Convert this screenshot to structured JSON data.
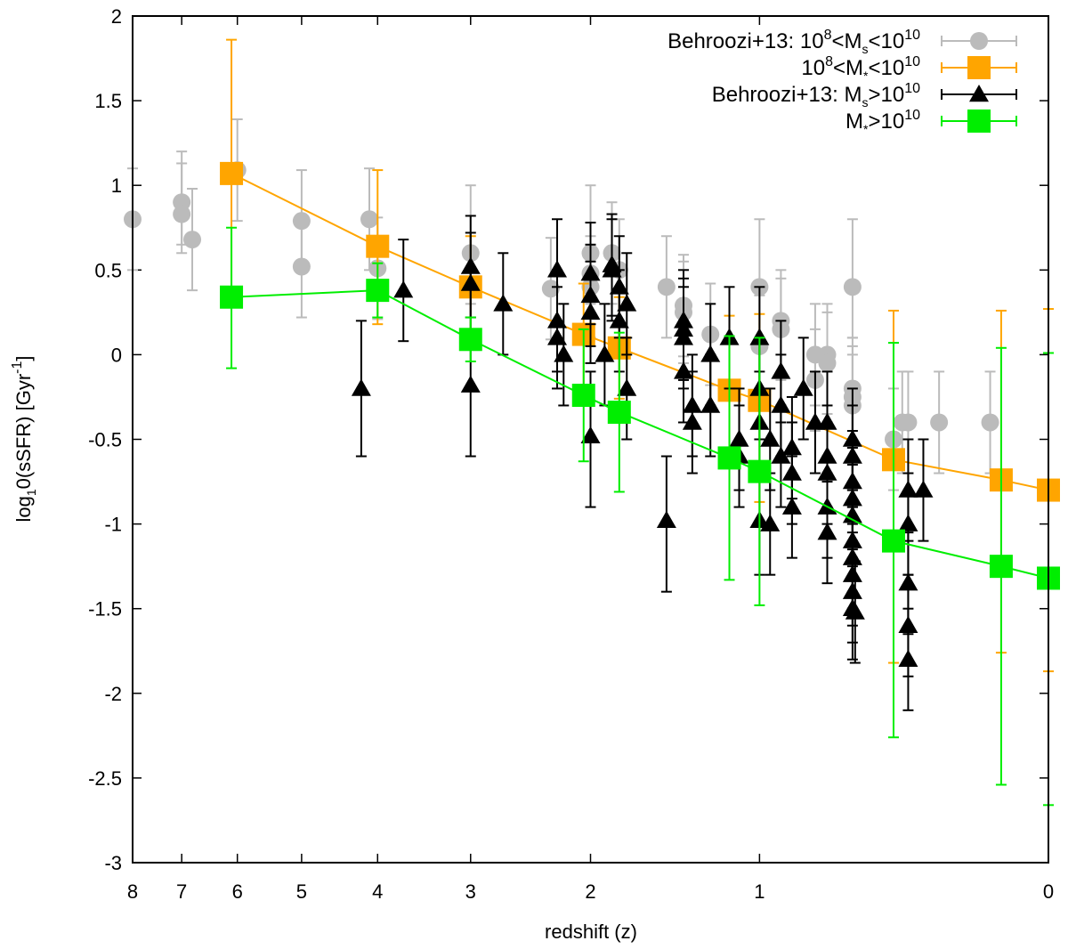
{
  "chart_data": {
    "type": "scatter",
    "title": "",
    "xlabel": "redshift (z)",
    "ylabel": {
      "pre": "log",
      "sub": "1",
      "mid": "0(sSFR) [Gyr",
      "sup": "-1",
      "post": "]"
    },
    "x_axis": {
      "scale": "log(1+z), reversed",
      "range": [
        8,
        0
      ]
    },
    "ylim": [
      -3,
      2
    ],
    "xticks": [
      {
        "z": 8,
        "label": "8"
      },
      {
        "z": 7,
        "label": "7"
      },
      {
        "z": 6,
        "label": "6"
      },
      {
        "z": 5,
        "label": "5"
      },
      {
        "z": 4,
        "label": "4"
      },
      {
        "z": 3,
        "label": "3"
      },
      {
        "z": 2,
        "label": "2"
      },
      {
        "z": 1,
        "label": "1"
      },
      {
        "z": 0,
        "label": "0"
      }
    ],
    "yticks": [
      {
        "v": 2,
        "label": "2"
      },
      {
        "v": 1.5,
        "label": "1.5"
      },
      {
        "v": 1,
        "label": "1"
      },
      {
        "v": 0.5,
        "label": "0.5"
      },
      {
        "v": 0,
        "label": "0"
      },
      {
        "v": -0.5,
        "label": "-0.5"
      },
      {
        "v": -1,
        "label": "-1"
      },
      {
        "v": -1.5,
        "label": "-1.5"
      },
      {
        "v": -2,
        "label": "-2"
      },
      {
        "v": -2.5,
        "label": "-2.5"
      },
      {
        "v": -3,
        "label": "-3"
      }
    ],
    "legend_position": "top-right",
    "series": [
      {
        "id": "behroozi-low",
        "legend": {
          "pre": "Behroozi+13: 10",
          "sup1": "8",
          "mid": "<M",
          "sub": "s",
          "mid2": "<10",
          "sup2": "10",
          "post": ""
        },
        "marker": "circle",
        "color": "#bbbbbb",
        "line": false,
        "points": [
          {
            "z": 8.0,
            "y": 0.8,
            "lo": 0.5,
            "hi": 1.1
          },
          {
            "z": 7.0,
            "y": 0.9,
            "lo": 0.6,
            "hi": 1.2
          },
          {
            "z": 7.0,
            "y": 0.83,
            "lo": 0.65,
            "hi": 1.13
          },
          {
            "z": 6.8,
            "y": 0.68,
            "lo": 0.38,
            "hi": 0.98
          },
          {
            "z": 6.0,
            "y": 1.09,
            "lo": 0.79,
            "hi": 1.39
          },
          {
            "z": 5.0,
            "y": 0.79,
            "lo": 0.49,
            "hi": 1.09
          },
          {
            "z": 5.0,
            "y": 0.52,
            "lo": 0.22,
            "hi": 0.82
          },
          {
            "z": 4.1,
            "y": 0.8,
            "lo": 0.5,
            "hi": 1.1
          },
          {
            "z": 4.0,
            "y": 0.51,
            "lo": 0.21,
            "hi": 0.81
          },
          {
            "z": 3.0,
            "y": 0.6,
            "lo": 0.3,
            "hi": 1.0
          },
          {
            "z": 2.3,
            "y": 0.39,
            "lo": 0.09,
            "hi": 0.69
          },
          {
            "z": 2.0,
            "y": 0.6,
            "lo": 0.3,
            "hi": 1.0
          },
          {
            "z": 2.0,
            "y": 0.48,
            "lo": 0.18,
            "hi": 0.78
          },
          {
            "z": 2.0,
            "y": 0.4,
            "lo": 0.1,
            "hi": 0.7
          },
          {
            "z": 1.85,
            "y": 0.6,
            "lo": 0.3,
            "hi": 0.9
          },
          {
            "z": 1.8,
            "y": 0.5,
            "lo": 0.2,
            "hi": 0.8
          },
          {
            "z": 1.5,
            "y": 0.4,
            "lo": 0.1,
            "hi": 0.7
          },
          {
            "z": 1.4,
            "y": 0.29,
            "lo": -0.01,
            "hi": 0.59
          },
          {
            "z": 1.4,
            "y": 0.25,
            "lo": -0.05,
            "hi": 0.55
          },
          {
            "z": 1.25,
            "y": 0.12,
            "lo": -0.18,
            "hi": 0.42
          },
          {
            "z": 1.0,
            "y": 0.4,
            "lo": 0.1,
            "hi": 0.8
          },
          {
            "z": 1.0,
            "y": 0.05,
            "lo": -0.25,
            "hi": 0.35
          },
          {
            "z": 0.9,
            "y": 0.2,
            "lo": -0.1,
            "hi": 0.5
          },
          {
            "z": 0.9,
            "y": 0.15,
            "lo": -0.15,
            "hi": 0.45
          },
          {
            "z": 0.75,
            "y": 0.0,
            "lo": -0.3,
            "hi": 0.3
          },
          {
            "z": 0.75,
            "y": -0.15,
            "lo": -0.45,
            "hi": 0.15
          },
          {
            "z": 0.7,
            "y": 0.0,
            "lo": -0.3,
            "hi": 0.3
          },
          {
            "z": 0.7,
            "y": -0.05,
            "lo": -0.35,
            "hi": 0.25
          },
          {
            "z": 0.6,
            "y": 0.4,
            "lo": 0.1,
            "hi": 0.8
          },
          {
            "z": 0.6,
            "y": -0.2,
            "lo": -0.5,
            "hi": 0.1
          },
          {
            "z": 0.6,
            "y": -0.25,
            "lo": -0.55,
            "hi": 0.05
          },
          {
            "z": 0.6,
            "y": -0.3,
            "lo": -0.6,
            "hi": 0.0
          },
          {
            "z": 0.45,
            "y": -0.5,
            "lo": -0.8,
            "hi": -0.2
          },
          {
            "z": 0.42,
            "y": -0.4,
            "lo": -0.7,
            "hi": -0.1
          },
          {
            "z": 0.4,
            "y": -0.4,
            "lo": -0.7,
            "hi": -0.1
          },
          {
            "z": 0.3,
            "y": -0.4,
            "lo": -0.7,
            "hi": -0.1
          },
          {
            "z": 0.15,
            "y": -0.4,
            "lo": -0.7,
            "hi": -0.1
          }
        ]
      },
      {
        "id": "model-low",
        "legend": {
          "pre": "10",
          "sup1": "8",
          "mid": "<M",
          "sub": "*",
          "mid2": "<10",
          "sup2": "10",
          "post": ""
        },
        "marker": "square",
        "color": "#ffa500",
        "line": true,
        "points": [
          {
            "z": 6.1,
            "y": 1.07,
            "lo": 0.28,
            "hi": 1.86
          },
          {
            "z": 4.0,
            "y": 0.64,
            "lo": 0.18,
            "hi": 1.09
          },
          {
            "z": 3.0,
            "y": 0.4,
            "lo": 0.1,
            "hi": 0.7
          },
          {
            "z": 2.05,
            "y": 0.12,
            "lo": -0.18,
            "hi": 0.42
          },
          {
            "z": 1.8,
            "y": 0.04,
            "lo": -0.26,
            "hi": 0.34
          },
          {
            "z": 1.15,
            "y": -0.21,
            "lo": -0.66,
            "hi": 0.23
          },
          {
            "z": 1.0,
            "y": -0.27,
            "lo": -0.87,
            "hi": 0.24
          },
          {
            "z": 0.45,
            "y": -0.62,
            "lo": -1.82,
            "hi": 0.26
          },
          {
            "z": 0.12,
            "y": -0.74,
            "lo": -1.76,
            "hi": 0.26
          },
          {
            "z": 0.0,
            "y": -0.8,
            "lo": -1.87,
            "hi": 0.27
          }
        ]
      },
      {
        "id": "behroozi-high",
        "legend": {
          "pre": "Behroozi+13: M",
          "sup1": "",
          "mid": "",
          "sub": "s",
          "mid2": ">10",
          "sup2": "10",
          "post": ""
        },
        "marker": "triangle",
        "color": "#000000",
        "line": false,
        "points": [
          {
            "z": 4.2,
            "y": -0.2,
            "lo": -0.6,
            "hi": 0.2
          },
          {
            "z": 3.7,
            "y": 0.38,
            "lo": 0.08,
            "hi": 0.68
          },
          {
            "z": 3.0,
            "y": 0.52,
            "lo": 0.22,
            "hi": 0.82
          },
          {
            "z": 3.0,
            "y": 0.42,
            "lo": 0.12,
            "hi": 0.72
          },
          {
            "z": 3.0,
            "y": -0.18,
            "lo": -0.6,
            "hi": 0.15
          },
          {
            "z": 2.7,
            "y": 0.3,
            "lo": 0.0,
            "hi": 0.6
          },
          {
            "z": 2.25,
            "y": 0.5,
            "lo": 0.2,
            "hi": 0.8
          },
          {
            "z": 2.25,
            "y": 0.2,
            "lo": -0.1,
            "hi": 0.5
          },
          {
            "z": 2.25,
            "y": 0.1,
            "lo": -0.2,
            "hi": 0.4
          },
          {
            "z": 2.2,
            "y": 0.0,
            "lo": -0.3,
            "hi": 0.3
          },
          {
            "z": 2.0,
            "y": 0.48,
            "lo": 0.18,
            "hi": 0.78
          },
          {
            "z": 2.0,
            "y": 0.35,
            "lo": 0.05,
            "hi": 0.65
          },
          {
            "z": 2.0,
            "y": 0.25,
            "lo": -0.05,
            "hi": 0.55
          },
          {
            "z": 2.0,
            "y": -0.48,
            "lo": -0.9,
            "hi": -0.1
          },
          {
            "z": 1.9,
            "y": 0.0,
            "lo": -0.3,
            "hi": 0.3
          },
          {
            "z": 1.85,
            "y": 0.53,
            "lo": 0.23,
            "hi": 0.83
          },
          {
            "z": 1.85,
            "y": 0.5,
            "lo": 0.2,
            "hi": 0.8
          },
          {
            "z": 1.8,
            "y": 0.2,
            "lo": -0.1,
            "hi": 0.5
          },
          {
            "z": 1.8,
            "y": 0.4,
            "lo": 0.1,
            "hi": 0.7
          },
          {
            "z": 1.75,
            "y": 0.3,
            "lo": 0.0,
            "hi": 0.6
          },
          {
            "z": 1.75,
            "y": -0.2,
            "lo": -0.5,
            "hi": 0.1
          },
          {
            "z": 1.5,
            "y": -0.98,
            "lo": -1.4,
            "hi": -0.6
          },
          {
            "z": 1.4,
            "y": 0.2,
            "lo": -0.1,
            "hi": 0.5
          },
          {
            "z": 1.4,
            "y": 0.15,
            "lo": -0.15,
            "hi": 0.45
          },
          {
            "z": 1.4,
            "y": 0.1,
            "lo": -0.2,
            "hi": 0.4
          },
          {
            "z": 1.4,
            "y": -0.1,
            "lo": -0.4,
            "hi": 0.2
          },
          {
            "z": 1.35,
            "y": -0.3,
            "lo": -0.6,
            "hi": 0.0
          },
          {
            "z": 1.35,
            "y": -0.4,
            "lo": -0.7,
            "hi": -0.1
          },
          {
            "z": 1.25,
            "y": 0.0,
            "lo": -0.3,
            "hi": 0.3
          },
          {
            "z": 1.25,
            "y": -0.3,
            "lo": -0.6,
            "hi": 0.0
          },
          {
            "z": 1.15,
            "y": 0.1,
            "lo": -0.2,
            "hi": 0.4
          },
          {
            "z": 1.1,
            "y": -0.5,
            "lo": -0.8,
            "hi": -0.2
          },
          {
            "z": 1.1,
            "y": -0.6,
            "lo": -0.9,
            "hi": -0.3
          },
          {
            "z": 1.0,
            "y": 0.1,
            "lo": -0.2,
            "hi": 0.4
          },
          {
            "z": 1.0,
            "y": -0.2,
            "lo": -0.5,
            "hi": 0.1
          },
          {
            "z": 1.0,
            "y": -0.4,
            "lo": -0.7,
            "hi": -0.1
          },
          {
            "z": 1.0,
            "y": -0.98,
            "lo": -1.3,
            "hi": -0.68
          },
          {
            "z": 0.95,
            "y": -0.5,
            "lo": -0.8,
            "hi": -0.2
          },
          {
            "z": 0.95,
            "y": -1.0,
            "lo": -1.3,
            "hi": -0.7
          },
          {
            "z": 0.9,
            "y": -0.1,
            "lo": -0.4,
            "hi": 0.2
          },
          {
            "z": 0.9,
            "y": -0.3,
            "lo": -0.6,
            "hi": 0.0
          },
          {
            "z": 0.9,
            "y": -0.6,
            "lo": -0.9,
            "hi": -0.3
          },
          {
            "z": 0.85,
            "y": -0.55,
            "lo": -0.85,
            "hi": -0.25
          },
          {
            "z": 0.85,
            "y": -0.7,
            "lo": -1.0,
            "hi": -0.4
          },
          {
            "z": 0.85,
            "y": -0.9,
            "lo": -1.2,
            "hi": -0.6
          },
          {
            "z": 0.8,
            "y": -0.2,
            "lo": -0.5,
            "hi": 0.1
          },
          {
            "z": 0.75,
            "y": -0.4,
            "lo": -0.7,
            "hi": -0.1
          },
          {
            "z": 0.7,
            "y": -0.4,
            "lo": -0.7,
            "hi": -0.1
          },
          {
            "z": 0.7,
            "y": -0.6,
            "lo": -0.9,
            "hi": -0.3
          },
          {
            "z": 0.7,
            "y": -0.7,
            "lo": -1.0,
            "hi": -0.4
          },
          {
            "z": 0.7,
            "y": -0.9,
            "lo": -1.2,
            "hi": -0.6
          },
          {
            "z": 0.7,
            "y": -1.05,
            "lo": -1.35,
            "hi": -0.75
          },
          {
            "z": 0.6,
            "y": -0.5,
            "lo": -0.8,
            "hi": -0.2
          },
          {
            "z": 0.6,
            "y": -0.6,
            "lo": -0.9,
            "hi": -0.3
          },
          {
            "z": 0.6,
            "y": -0.75,
            "lo": -1.05,
            "hi": -0.45
          },
          {
            "z": 0.6,
            "y": -0.85,
            "lo": -1.15,
            "hi": -0.55
          },
          {
            "z": 0.6,
            "y": -0.95,
            "lo": -1.25,
            "hi": -0.65
          },
          {
            "z": 0.6,
            "y": -1.1,
            "lo": -1.4,
            "hi": -0.8
          },
          {
            "z": 0.6,
            "y": -1.2,
            "lo": -1.5,
            "hi": -0.9
          },
          {
            "z": 0.6,
            "y": -1.3,
            "lo": -1.6,
            "hi": -1.0
          },
          {
            "z": 0.6,
            "y": -1.4,
            "lo": -1.7,
            "hi": -1.1
          },
          {
            "z": 0.6,
            "y": -1.5,
            "lo": -1.8,
            "hi": -1.2
          },
          {
            "z": 0.59,
            "y": -1.52,
            "lo": -1.82,
            "hi": -1.22
          },
          {
            "z": 0.4,
            "y": -0.8,
            "lo": -1.1,
            "hi": -0.5
          },
          {
            "z": 0.4,
            "y": -1.0,
            "lo": -1.3,
            "hi": -0.7
          },
          {
            "z": 0.4,
            "y": -1.35,
            "lo": -1.65,
            "hi": -1.05
          },
          {
            "z": 0.4,
            "y": -1.6,
            "lo": -1.9,
            "hi": -1.3
          },
          {
            "z": 0.4,
            "y": -1.8,
            "lo": -2.1,
            "hi": -1.5
          },
          {
            "z": 0.35,
            "y": -0.8,
            "lo": -1.1,
            "hi": -0.5
          }
        ]
      },
      {
        "id": "model-high",
        "legend": {
          "pre": "M",
          "sup1": "",
          "mid": "",
          "sub": "*",
          "mid2": ">10",
          "sup2": "10",
          "post": ""
        },
        "marker": "square",
        "color": "#00ee00",
        "line": true,
        "points": [
          {
            "z": 6.1,
            "y": 0.34,
            "lo": -0.08,
            "hi": 0.75
          },
          {
            "z": 4.0,
            "y": 0.38,
            "lo": 0.22,
            "hi": 0.54
          },
          {
            "z": 3.0,
            "y": 0.09,
            "lo": -0.04,
            "hi": 0.22
          },
          {
            "z": 2.05,
            "y": -0.24,
            "lo": -0.63,
            "hi": 0.15
          },
          {
            "z": 1.8,
            "y": -0.34,
            "lo": -0.81,
            "hi": 0.13
          },
          {
            "z": 1.15,
            "y": -0.61,
            "lo": -1.33,
            "hi": 0.11
          },
          {
            "z": 1.0,
            "y": -0.69,
            "lo": -1.48,
            "hi": 0.1
          },
          {
            "z": 0.45,
            "y": -1.1,
            "lo": -2.26,
            "hi": 0.07
          },
          {
            "z": 0.12,
            "y": -1.25,
            "lo": -2.54,
            "hi": 0.04
          },
          {
            "z": 0.0,
            "y": -1.32,
            "lo": -2.66,
            "hi": 0.01
          }
        ]
      }
    ]
  }
}
